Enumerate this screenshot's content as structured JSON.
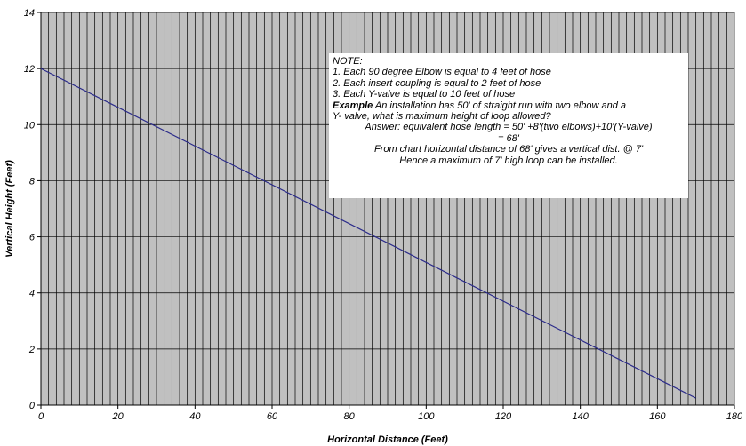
{
  "chart_data": {
    "type": "line",
    "xlabel": "Horizontal Distance (Feet)",
    "ylabel": "Vertical Height (Feet)",
    "xlim": [
      0,
      180
    ],
    "ylim": [
      0,
      14
    ],
    "x_ticks": [
      0,
      20,
      40,
      60,
      80,
      100,
      120,
      140,
      160,
      180
    ],
    "y_ticks": [
      0,
      2,
      4,
      6,
      8,
      10,
      12,
      14
    ],
    "grid": true,
    "plot_background": "#c0c0c0",
    "grid_color": "#000000",
    "line_color": "#2b2b8a",
    "series": [
      {
        "x": [
          0,
          170
        ],
        "y": [
          12,
          0.25
        ]
      }
    ]
  },
  "note": {
    "heading": "NOTE:",
    "item1": "1. Each 90 degree Elbow is equal to 4 feet of hose",
    "item2": "2. Each insert coupling is equal to 2 feet of hose",
    "item3": "3. Each Y-valve is equal to 10 feet of hose",
    "example_label": "Example",
    "example_text1": " An installation has 50' of straight run with two elbow and a",
    "example_text2": "Y- valve, what is maximum height of loop allowed?",
    "answer1": "Answer: equivalent hose length = 50' +8'(two elbows)+10'(Y-valve)",
    "answer2": "= 68'",
    "conclusion1": "From chart horizontal distance of 68' gives a vertical dist. @ 7'",
    "conclusion2": "Hence a maximum of 7' high loop can be installed."
  }
}
